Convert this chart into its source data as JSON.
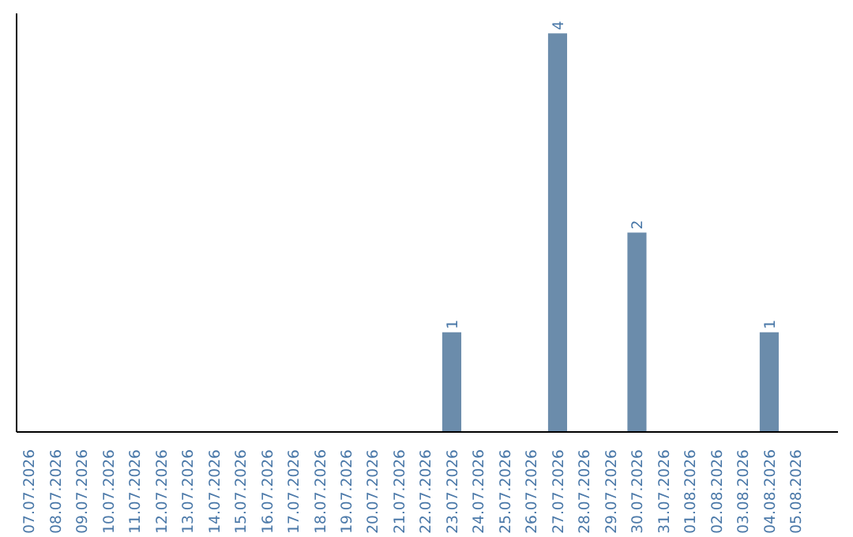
{
  "chart_data": {
    "type": "bar",
    "categories": [
      "07.07.2026",
      "08.07.2026",
      "09.07.2026",
      "10.07.2026",
      "11.07.2026",
      "12.07.2026",
      "13.07.2026",
      "14.07.2026",
      "15.07.2026",
      "16.07.2026",
      "17.07.2026",
      "18.07.2026",
      "19.07.2026",
      "20.07.2026",
      "21.07.2026",
      "22.07.2026",
      "23.07.2026",
      "24.07.2026",
      "25.07.2026",
      "26.07.2026",
      "27.07.2026",
      "28.07.2026",
      "29.07.2026",
      "30.07.2026",
      "31.07.2026",
      "01.08.2026",
      "02.08.2026",
      "03.08.2026",
      "04.08.2026",
      "05.08.2026"
    ],
    "values": [
      null,
      null,
      null,
      null,
      null,
      null,
      null,
      null,
      null,
      null,
      null,
      null,
      null,
      null,
      null,
      null,
      1,
      null,
      null,
      null,
      4,
      null,
      null,
      2,
      null,
      null,
      null,
      null,
      1,
      null
    ],
    "value_labels": [
      null,
      null,
      null,
      null,
      null,
      null,
      null,
      null,
      null,
      null,
      null,
      null,
      null,
      null,
      null,
      null,
      "1",
      null,
      null,
      null,
      "4",
      null,
      null,
      "2",
      null,
      null,
      null,
      null,
      "1",
      null
    ],
    "color": "#6b8cab",
    "ylim": [
      0,
      4.2
    ],
    "tick_labels": "x",
    "grid": false
  }
}
